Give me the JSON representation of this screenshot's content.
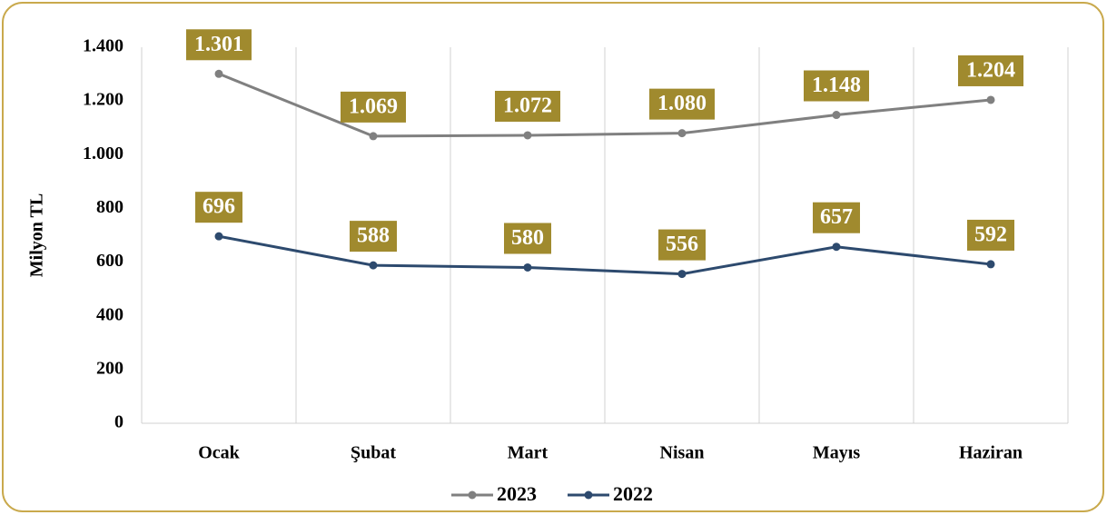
{
  "chart_data": {
    "type": "line",
    "y_label": "Milyon TL",
    "categories": [
      "Ocak",
      "Şubat",
      "Mart",
      "Nisan",
      "Mayıs",
      "Haziran"
    ],
    "series": [
      {
        "name": "2023",
        "color": "#808080",
        "values": [
          1301,
          1069,
          1072,
          1080,
          1148,
          1204
        ],
        "value_labels": [
          "1.301",
          "1.069",
          "1.072",
          "1.080",
          "1.148",
          "1.204"
        ]
      },
      {
        "name": "2022",
        "color": "#2d4a6e",
        "values": [
          696,
          588,
          580,
          556,
          657,
          592
        ]
      }
    ],
    "ylim": [
      0,
      1400
    ],
    "yticks": [
      0,
      200,
      400,
      600,
      800,
      {
        "value": 1000,
        "label": "1.000"
      },
      {
        "value": 1200,
        "label": "1.200"
      },
      {
        "value": 1400,
        "label": "1.400"
      }
    ],
    "label_color": "#a08a2e",
    "legend": "bottom"
  }
}
